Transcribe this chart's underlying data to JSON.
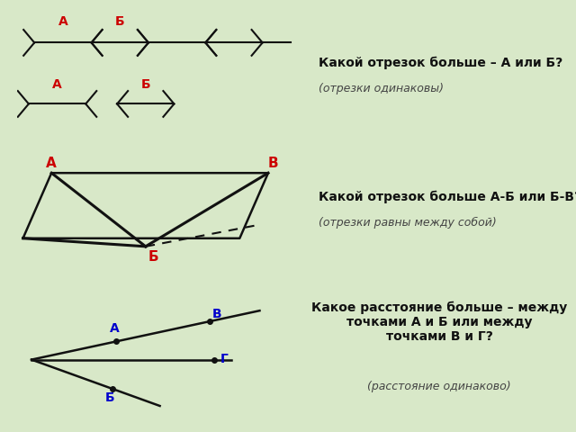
{
  "bg_color": "#d8e8c8",
  "panel1_bg": "#ffffff",
  "panel2_bg": "#cce0ee",
  "panel3_bg": "#cce0ee",
  "text1_main": "Какой отрезок больше – А или Б?",
  "text1_sub": "(отрезки одинаковы)",
  "text2_main": "Какой отрезок больше А-Б или Б-В?",
  "text2_sub": "(отрезки равны между собой)",
  "text3_main": "Какое расстояние больше – между\nточками А и Б или между\nточками В и Г?",
  "text3_sub": "(расстояние одинаково)",
  "label_color_red": "#cc0000",
  "label_color_blue": "#0000cc",
  "line_color": "#111111"
}
